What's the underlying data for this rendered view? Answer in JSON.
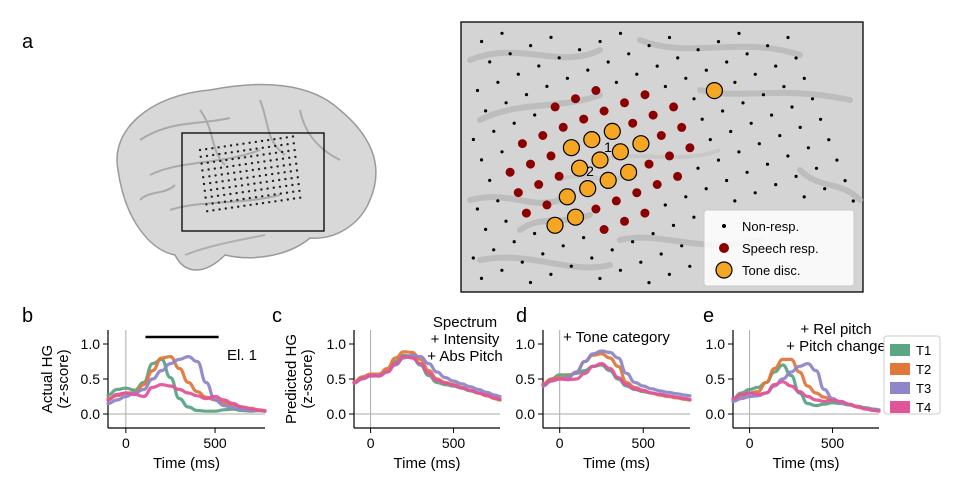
{
  "panels": {
    "a": "a",
    "b": "b",
    "c": "c",
    "d": "d",
    "e": "e"
  },
  "brain_legend": {
    "items": [
      {
        "label": "Non-resp.",
        "color": "#000000",
        "marker": "small-dot"
      },
      {
        "label": "Speech resp.",
        "color": "#8b0000",
        "marker": "medium-dot"
      },
      {
        "label": "Tone disc.",
        "color": "#f5a623",
        "marker": "large-circle"
      }
    ],
    "electrode_labels": [
      "1",
      "2"
    ]
  },
  "tone_legend": [
    {
      "label": "T1",
      "color": "#5aa584"
    },
    {
      "label": "T2",
      "color": "#e0783c"
    },
    {
      "label": "T3",
      "color": "#8f86c9"
    },
    {
      "label": "T4",
      "color": "#e0559a"
    }
  ],
  "chart_data": [
    {
      "type": "line",
      "panel": "b",
      "ylabel_line1": "Actual HG",
      "ylabel_line2": "(z-score)",
      "xlabel": "Time (ms)",
      "xlim": [
        -100,
        780
      ],
      "ylim": [
        -0.2,
        1.2
      ],
      "xticks": [
        "0",
        "500"
      ],
      "yticks": [
        "0.0",
        "0.5",
        "1.0"
      ],
      "annotation": "El. 1",
      "sig_bar": [
        110,
        520
      ],
      "series": [
        {
          "name": "T1",
          "x": [
            -100,
            -50,
            0,
            50,
            100,
            150,
            200,
            250,
            300,
            350,
            400,
            450,
            500,
            550,
            600,
            650,
            700,
            750,
            780
          ],
          "y": [
            0.27,
            0.35,
            0.37,
            0.34,
            0.45,
            0.72,
            0.78,
            0.52,
            0.22,
            0.1,
            0.05,
            0.04,
            0.04,
            0.06,
            0.07,
            0.05,
            0.04,
            0.05,
            0.04
          ]
        },
        {
          "name": "T2",
          "x": [
            -100,
            -50,
            0,
            50,
            100,
            150,
            200,
            250,
            300,
            350,
            400,
            450,
            500,
            550,
            600,
            650,
            700,
            750,
            780
          ],
          "y": [
            0.22,
            0.26,
            0.3,
            0.3,
            0.42,
            0.62,
            0.8,
            0.82,
            0.65,
            0.45,
            0.32,
            0.24,
            0.2,
            0.16,
            0.13,
            0.1,
            0.08,
            0.06,
            0.05
          ]
        },
        {
          "name": "T3",
          "x": [
            -100,
            -50,
            0,
            50,
            100,
            150,
            200,
            250,
            300,
            350,
            400,
            450,
            500,
            550,
            600,
            650,
            700,
            750,
            780
          ],
          "y": [
            0.15,
            0.2,
            0.25,
            0.3,
            0.35,
            0.5,
            0.62,
            0.72,
            0.78,
            0.82,
            0.75,
            0.45,
            0.2,
            0.12,
            0.09,
            0.07,
            0.05,
            0.05,
            0.04
          ]
        },
        {
          "name": "T4",
          "x": [
            -100,
            -50,
            0,
            50,
            100,
            150,
            200,
            250,
            300,
            350,
            400,
            450,
            500,
            550,
            600,
            650,
            700,
            750,
            780
          ],
          "y": [
            0.2,
            0.28,
            0.3,
            0.28,
            0.25,
            0.38,
            0.42,
            0.4,
            0.35,
            0.3,
            0.26,
            0.22,
            0.25,
            0.2,
            0.15,
            0.1,
            0.07,
            0.05,
            0.04
          ]
        }
      ]
    },
    {
      "type": "line",
      "panel": "c",
      "ylabel_line1": "Predicted HG",
      "ylabel_line2": "(z-score)",
      "xlabel": "Time (ms)",
      "xlim": [
        -100,
        780
      ],
      "ylim": [
        -0.2,
        1.2
      ],
      "xticks": [
        "0",
        "500"
      ],
      "yticks": [
        "0.0",
        "0.5",
        "1.0"
      ],
      "annotation_lines": [
        "Spectrum",
        "+ Intensity",
        "+ Abs Pitch"
      ],
      "series": [
        {
          "name": "T1",
          "x": [
            -100,
            -50,
            0,
            50,
            100,
            150,
            200,
            250,
            300,
            350,
            400,
            450,
            500,
            550,
            600,
            650,
            700,
            750,
            780
          ],
          "y": [
            0.45,
            0.52,
            0.55,
            0.55,
            0.62,
            0.75,
            0.84,
            0.82,
            0.7,
            0.55,
            0.45,
            0.42,
            0.4,
            0.37,
            0.33,
            0.3,
            0.26,
            0.22,
            0.2
          ]
        },
        {
          "name": "T2",
          "x": [
            -100,
            -50,
            0,
            50,
            100,
            150,
            200,
            250,
            300,
            350,
            400,
            450,
            500,
            550,
            600,
            650,
            700,
            750,
            780
          ],
          "y": [
            0.46,
            0.53,
            0.57,
            0.57,
            0.65,
            0.8,
            0.89,
            0.88,
            0.78,
            0.62,
            0.5,
            0.45,
            0.42,
            0.38,
            0.34,
            0.3,
            0.26,
            0.22,
            0.2
          ]
        },
        {
          "name": "T3",
          "x": [
            -100,
            -50,
            0,
            50,
            100,
            150,
            200,
            250,
            300,
            350,
            400,
            450,
            500,
            550,
            600,
            650,
            700,
            750,
            780
          ],
          "y": [
            0.44,
            0.5,
            0.54,
            0.55,
            0.6,
            0.7,
            0.8,
            0.84,
            0.82,
            0.72,
            0.6,
            0.52,
            0.47,
            0.43,
            0.39,
            0.35,
            0.31,
            0.27,
            0.25
          ]
        },
        {
          "name": "T4",
          "x": [
            -100,
            -50,
            0,
            50,
            100,
            150,
            200,
            250,
            300,
            350,
            400,
            450,
            500,
            550,
            600,
            650,
            700,
            750,
            780
          ],
          "y": [
            0.45,
            0.51,
            0.55,
            0.54,
            0.6,
            0.72,
            0.82,
            0.8,
            0.72,
            0.58,
            0.48,
            0.44,
            0.41,
            0.37,
            0.34,
            0.3,
            0.27,
            0.23,
            0.21
          ]
        }
      ]
    },
    {
      "type": "line",
      "panel": "d",
      "xlabel": "Time (ms)",
      "xlim": [
        -100,
        780
      ],
      "ylim": [
        -0.2,
        1.2
      ],
      "xticks": [
        "0",
        "500"
      ],
      "yticks": [
        "0.0",
        "0.5",
        "1.0"
      ],
      "annotation_lines": [
        "+ Tone category"
      ],
      "series": [
        {
          "name": "T1",
          "x": [
            -100,
            -50,
            0,
            50,
            100,
            150,
            200,
            250,
            300,
            350,
            400,
            450,
            500,
            550,
            600,
            650,
            700,
            750,
            780
          ],
          "y": [
            0.42,
            0.5,
            0.56,
            0.56,
            0.58,
            0.62,
            0.68,
            0.7,
            0.62,
            0.5,
            0.4,
            0.35,
            0.32,
            0.3,
            0.28,
            0.26,
            0.24,
            0.22,
            0.2
          ]
        },
        {
          "name": "T2",
          "x": [
            -100,
            -50,
            0,
            50,
            100,
            150,
            200,
            250,
            300,
            350,
            400,
            450,
            500,
            550,
            600,
            650,
            700,
            750,
            780
          ],
          "y": [
            0.43,
            0.5,
            0.52,
            0.53,
            0.6,
            0.75,
            0.84,
            0.86,
            0.8,
            0.68,
            0.45,
            0.38,
            0.34,
            0.3,
            0.27,
            0.25,
            0.23,
            0.21,
            0.2
          ]
        },
        {
          "name": "T3",
          "x": [
            -100,
            -50,
            0,
            50,
            100,
            150,
            200,
            250,
            300,
            350,
            400,
            450,
            500,
            550,
            600,
            650,
            700,
            750,
            780
          ],
          "y": [
            0.4,
            0.47,
            0.5,
            0.52,
            0.6,
            0.75,
            0.86,
            0.9,
            0.88,
            0.8,
            0.58,
            0.45,
            0.4,
            0.36,
            0.33,
            0.31,
            0.29,
            0.27,
            0.26
          ]
        },
        {
          "name": "T4",
          "x": [
            -100,
            -50,
            0,
            50,
            100,
            150,
            200,
            250,
            300,
            350,
            400,
            450,
            500,
            550,
            600,
            650,
            700,
            750,
            780
          ],
          "y": [
            0.42,
            0.48,
            0.5,
            0.49,
            0.5,
            0.58,
            0.68,
            0.72,
            0.65,
            0.52,
            0.42,
            0.36,
            0.33,
            0.3,
            0.28,
            0.26,
            0.24,
            0.22,
            0.21
          ]
        }
      ]
    },
    {
      "type": "line",
      "panel": "e",
      "xlabel": "Time (ms)",
      "xlim": [
        -100,
        780
      ],
      "ylim": [
        -0.2,
        1.2
      ],
      "xticks": [
        "0",
        "500"
      ],
      "yticks": [
        "0.0",
        "0.5",
        "1.0"
      ],
      "annotation_lines": [
        "+ Rel pitch",
        "+ Pitch change"
      ],
      "series": [
        {
          "name": "T1",
          "x": [
            -100,
            -50,
            0,
            50,
            100,
            150,
            200,
            250,
            300,
            350,
            400,
            450,
            500,
            550,
            600,
            650,
            700,
            750,
            780
          ],
          "y": [
            0.22,
            0.3,
            0.35,
            0.38,
            0.45,
            0.6,
            0.7,
            0.55,
            0.3,
            0.15,
            0.12,
            0.14,
            0.16,
            0.15,
            0.13,
            0.11,
            0.09,
            0.07,
            0.06
          ]
        },
        {
          "name": "T2",
          "x": [
            -100,
            -50,
            0,
            50,
            100,
            150,
            200,
            250,
            300,
            350,
            400,
            450,
            500,
            550,
            600,
            650,
            700,
            750,
            780
          ],
          "y": [
            0.2,
            0.26,
            0.3,
            0.32,
            0.45,
            0.65,
            0.78,
            0.78,
            0.6,
            0.4,
            0.3,
            0.24,
            0.2,
            0.17,
            0.14,
            0.11,
            0.08,
            0.06,
            0.05
          ]
        },
        {
          "name": "T3",
          "x": [
            -100,
            -50,
            0,
            50,
            100,
            150,
            200,
            250,
            300,
            350,
            400,
            450,
            500,
            550,
            600,
            650,
            700,
            750,
            780
          ],
          "y": [
            0.18,
            0.22,
            0.25,
            0.26,
            0.3,
            0.4,
            0.5,
            0.6,
            0.68,
            0.72,
            0.62,
            0.35,
            0.22,
            0.16,
            0.13,
            0.1,
            0.08,
            0.06,
            0.05
          ]
        },
        {
          "name": "T4",
          "x": [
            -100,
            -50,
            0,
            50,
            100,
            150,
            200,
            250,
            300,
            350,
            400,
            450,
            500,
            550,
            600,
            650,
            700,
            750,
            780
          ],
          "y": [
            0.22,
            0.28,
            0.3,
            0.28,
            0.3,
            0.42,
            0.46,
            0.4,
            0.32,
            0.25,
            0.2,
            0.18,
            0.2,
            0.18,
            0.14,
            0.1,
            0.07,
            0.05,
            0.04
          ]
        }
      ]
    }
  ]
}
